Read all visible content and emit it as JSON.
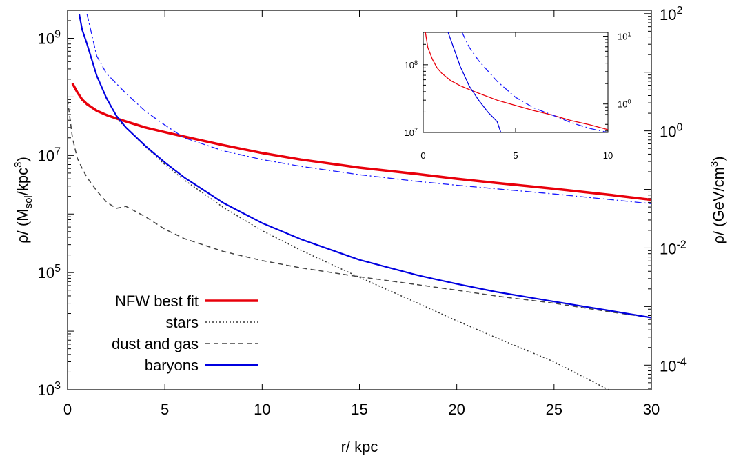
{
  "chart_data": [
    {
      "type": "line",
      "title": "",
      "xlabel": "r/ kpc",
      "ylabel_left": "ρ/ (Msol/kpc3)",
      "ylabel_right": "ρ/ (GeV/cm3)",
      "y_scale": "log",
      "xlim": [
        0,
        30
      ],
      "ylim_left": [
        1000,
        3000000000
      ],
      "ylim_right": [
        3.796e-05,
        113.9
      ],
      "conversion_GeVcm3_per_Msolkpc3": 3.797e-08,
      "x_ticks": [
        "0",
        "5",
        "10",
        "15",
        "20",
        "25",
        "30"
      ],
      "y_left_ticks": [
        {
          "value": 1000,
          "base": "10",
          "exp": "3"
        },
        {
          "value": 100000,
          "base": "10",
          "exp": "5"
        },
        {
          "value": 10000000,
          "base": "10",
          "exp": "7"
        },
        {
          "value": 1000000000,
          "base": "10",
          "exp": "9"
        }
      ],
      "y_right_ticks": [
        {
          "value": 0.0001,
          "base": "10",
          "exp": "-4"
        },
        {
          "value": 0.01,
          "base": "10",
          "exp": "-2"
        },
        {
          "value": 1,
          "base": "10",
          "exp": "0"
        },
        {
          "value": 100,
          "base": "10",
          "exp": "2"
        }
      ],
      "legend_position": "bottom-left",
      "grid": false,
      "series": [
        {
          "name": "NFW best fit",
          "color": "#e8000b",
          "style": "solid-thick",
          "x": [
            0.25,
            0.5,
            0.75,
            1,
            1.5,
            2,
            2.5,
            3,
            4,
            5,
            6,
            8,
            10,
            12,
            15,
            18,
            20,
            22,
            25,
            28,
            30
          ],
          "y": [
            170000000,
            120000000,
            90000000,
            75000000,
            58000000,
            49000000,
            43000000,
            38000000,
            30000000,
            25000000,
            21000000,
            15000000,
            11000000,
            8500000,
            6200000,
            4800000,
            4000000,
            3400000,
            2700000,
            2100000,
            1750000
          ]
        },
        {
          "name": "stars",
          "color": "#333333",
          "style": "dotted",
          "x": [
            2.5,
            3,
            4,
            5,
            6,
            8,
            10,
            12,
            15,
            18,
            20,
            22,
            25,
            27.8
          ],
          "y": [
            43000000,
            30000000,
            14000000,
            7000000,
            3800000,
            1300000,
            520000,
            240000,
            83000,
            30000,
            15000,
            7800,
            3000,
            1000
          ]
        },
        {
          "name": "dust and gas",
          "color": "#444444",
          "style": "dashed",
          "x": [
            0,
            0.25,
            0.5,
            0.75,
            1,
            1.5,
            2,
            2.5,
            2.75,
            3,
            4,
            5,
            6,
            8,
            10,
            12,
            15,
            18,
            20,
            22,
            25,
            28,
            30
          ],
          "y": [
            90000000,
            20000000,
            9000000,
            6000000,
            4200000,
            2500000,
            1600000,
            1250000,
            1300000,
            1350000,
            900000,
            550000,
            380000,
            230000,
            160000,
            120000,
            85000,
            62000,
            50000,
            40000,
            30000,
            21000,
            17000
          ]
        },
        {
          "name": "baryons",
          "color": "#0000e0",
          "style": "solid",
          "x": [
            0.6,
            0.75,
            1,
            1.5,
            2,
            2.5,
            3,
            4,
            5,
            6,
            8,
            10,
            12,
            15,
            18,
            20,
            22,
            25,
            28,
            30
          ],
          "y": [
            2600000000,
            1400000000,
            800000000,
            230000000,
            95000000,
            48000000,
            30000000,
            14500000,
            7600000,
            4200000,
            1550000,
            700000,
            370000,
            165000,
            90000,
            64000,
            47000,
            32000,
            22000,
            17000
          ]
        },
        {
          "name": "",
          "color": "#1a1aff",
          "style": "dashdot",
          "x": [
            1,
            1.5,
            2,
            3,
            4,
            5,
            6,
            8,
            10,
            12,
            15,
            18,
            20,
            22,
            25,
            28,
            30
          ],
          "y": [
            2600000000,
            500000000,
            250000000,
            115000000,
            57000000,
            33000000,
            20000000,
            12000000,
            8500000,
            6500000,
            4700000,
            3600000,
            3100000,
            2700000,
            2200000,
            1750000,
            1500000
          ]
        }
      ]
    },
    {
      "type": "line",
      "title": "",
      "inset": true,
      "y_scale": "log",
      "xlim": [
        0,
        10
      ],
      "ylim_left": [
        10000000,
        300000000
      ],
      "x_ticks": [
        "0",
        "5",
        "10"
      ],
      "y_left_ticks": [
        {
          "value": 10000000,
          "base": "10",
          "exp": "7"
        },
        {
          "value": 100000000,
          "base": "10",
          "exp": "8"
        }
      ],
      "y_right_ticks": [
        {
          "value": 1,
          "base": "10",
          "exp": "0"
        },
        {
          "value": 10,
          "base": "10",
          "exp": "1"
        }
      ],
      "series": [
        {
          "name": "",
          "color": "#e8000b",
          "style": "solid",
          "x": [
            0.12,
            0.25,
            0.5,
            0.75,
            1,
            1.5,
            2,
            2.5,
            3,
            4,
            5,
            6,
            7,
            8,
            9,
            10
          ],
          "y": [
            300000000,
            180000000,
            120000000,
            90000000,
            75000000,
            58000000,
            49000000,
            43000000,
            38000000,
            30000000,
            25000000,
            21000000,
            18000000,
            15000000,
            13000000,
            11000000
          ]
        },
        {
          "name": "",
          "color": "#0000e0",
          "style": "solid",
          "x": [
            1.35,
            1.5,
            2,
            2.5,
            3,
            3.5,
            4,
            4.2
          ],
          "y": [
            300000000,
            230000000,
            95000000,
            48000000,
            30000000,
            20000000,
            14500000,
            10000000
          ]
        },
        {
          "name": "",
          "color": "#1a1aff",
          "style": "dashdot",
          "x": [
            2.1,
            2.5,
            3,
            4,
            5,
            6,
            7,
            8,
            9,
            10
          ],
          "y": [
            300000000,
            180000000,
            115000000,
            57000000,
            33000000,
            23000000,
            18000000,
            14000000,
            11500000,
            10000000
          ]
        }
      ]
    }
  ]
}
